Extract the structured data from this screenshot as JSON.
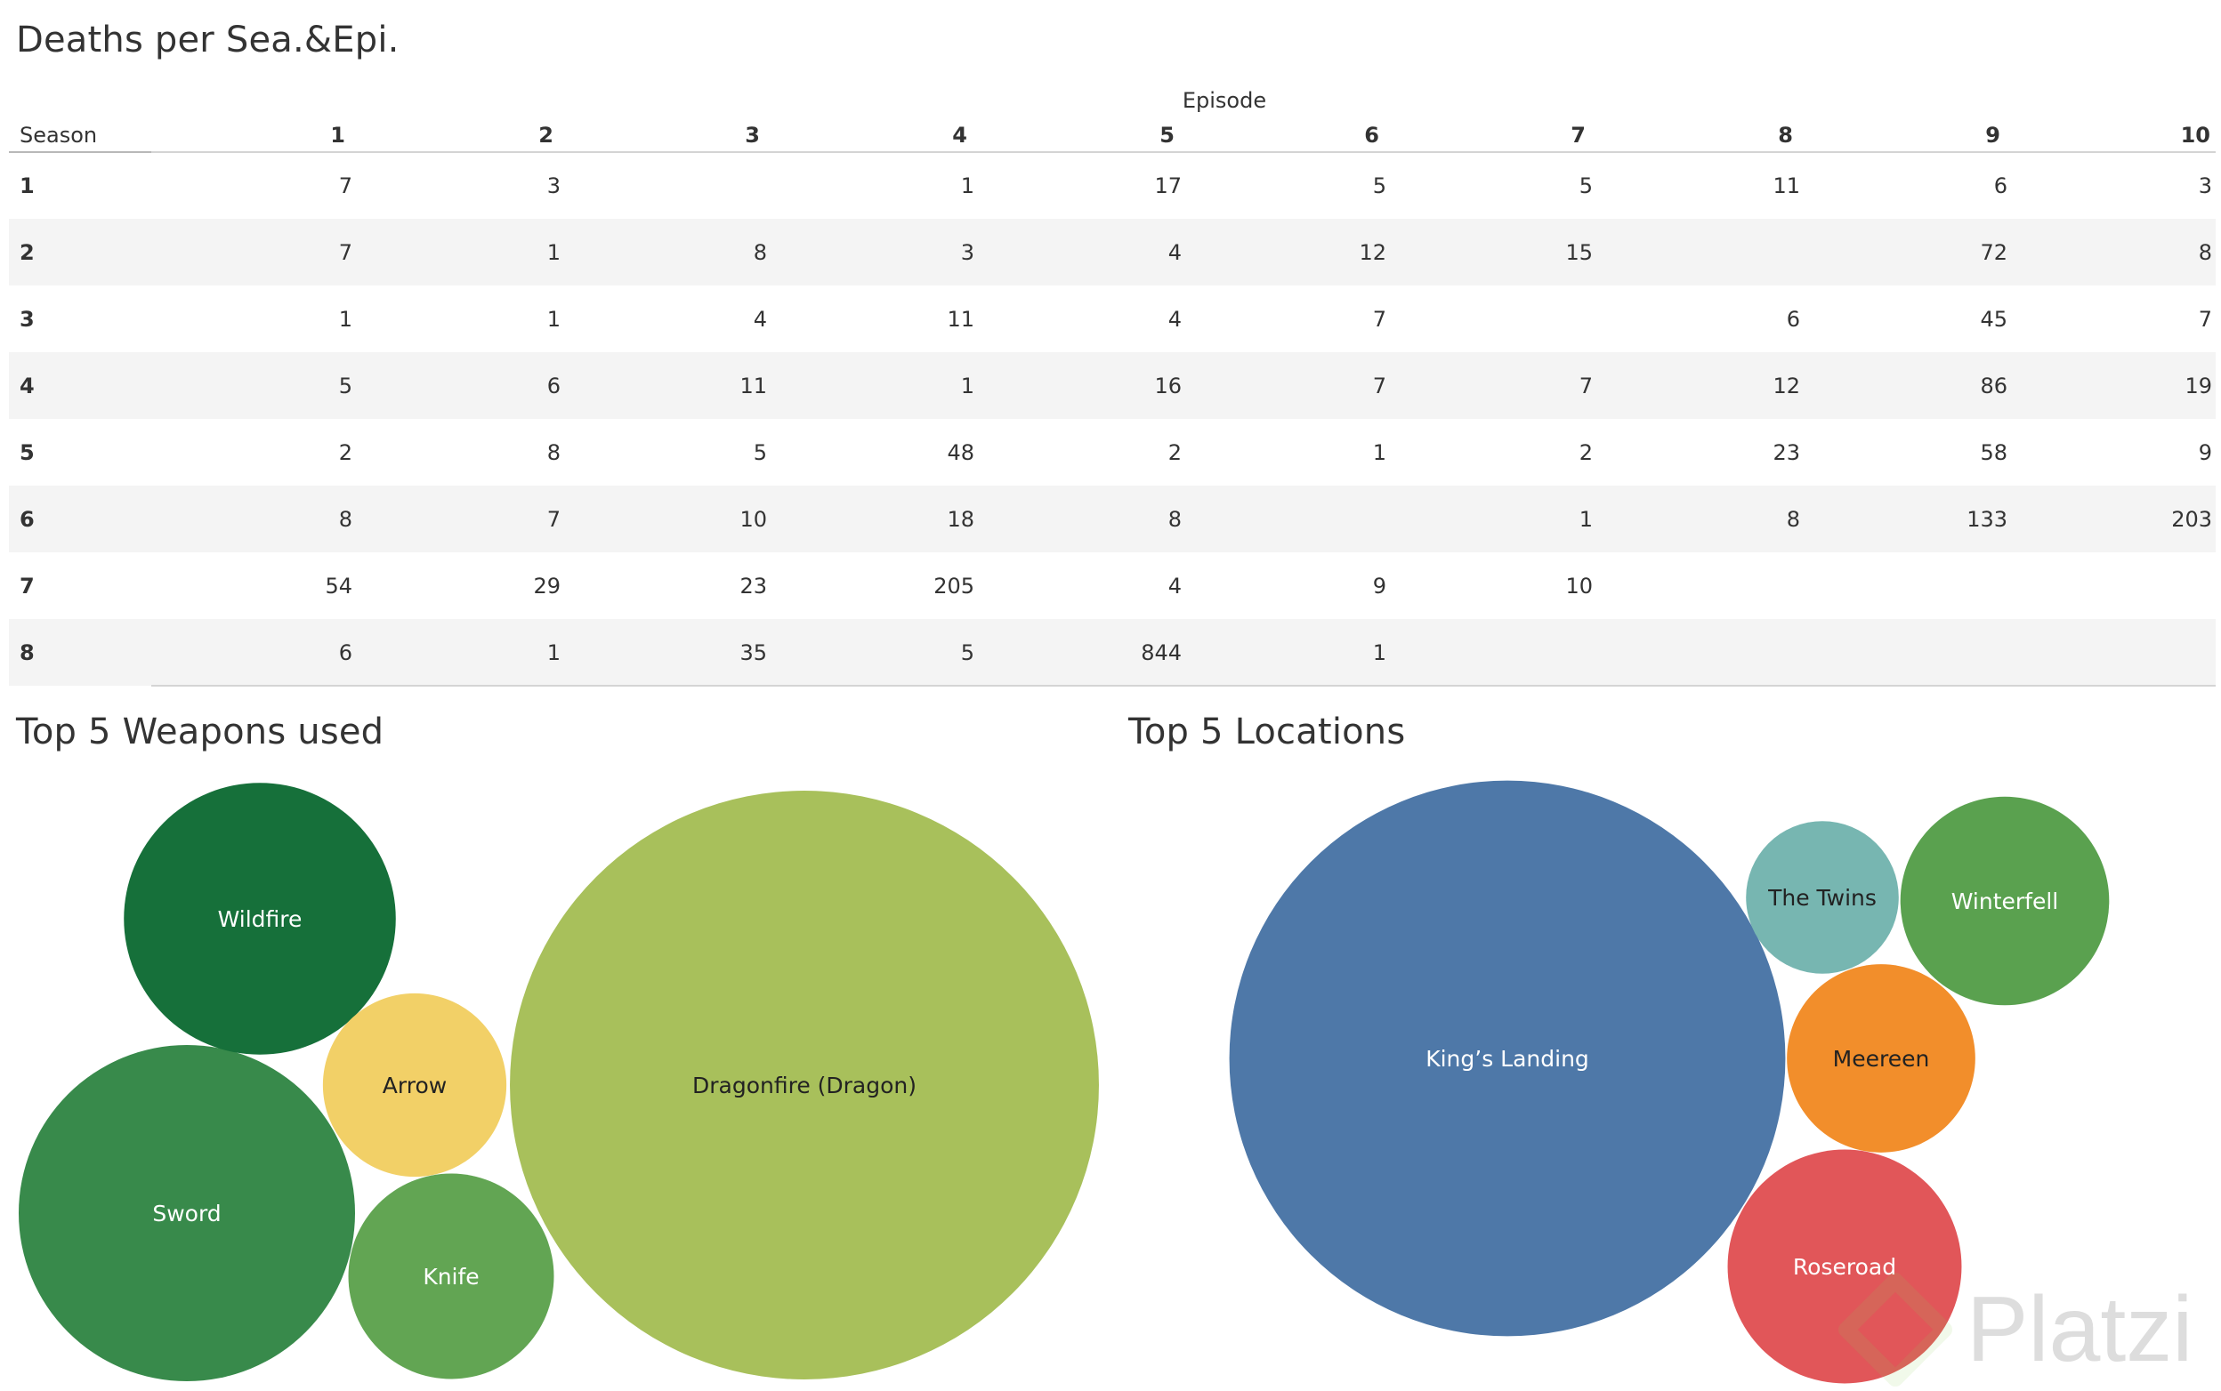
{
  "table": {
    "title": "Deaths per Sea.&Epi.",
    "row_header": "Season",
    "column_header": "Episode"
  },
  "weapons": {
    "title": "Top 5 Weapons used"
  },
  "locations": {
    "title": "Top 5 Locations"
  },
  "watermark": {
    "text": "Platzi"
  },
  "chart_data": [
    {
      "type": "table",
      "title": "Deaths per Sea.&Epi.",
      "row_label": "Season",
      "column_label": "Episode",
      "columns": [
        "1",
        "2",
        "3",
        "4",
        "5",
        "6",
        "7",
        "8",
        "9",
        "10"
      ],
      "rows": [
        {
          "season": "1",
          "values": [
            7,
            3,
            null,
            1,
            17,
            5,
            5,
            11,
            6,
            3
          ]
        },
        {
          "season": "2",
          "values": [
            7,
            1,
            8,
            3,
            4,
            12,
            15,
            null,
            72,
            8
          ]
        },
        {
          "season": "3",
          "values": [
            1,
            1,
            4,
            11,
            4,
            7,
            null,
            6,
            45,
            7
          ]
        },
        {
          "season": "4",
          "values": [
            5,
            6,
            11,
            1,
            16,
            7,
            7,
            12,
            86,
            19
          ]
        },
        {
          "season": "5",
          "values": [
            2,
            8,
            5,
            48,
            2,
            1,
            2,
            23,
            58,
            9
          ]
        },
        {
          "season": "6",
          "values": [
            8,
            7,
            10,
            18,
            8,
            null,
            1,
            8,
            133,
            203
          ]
        },
        {
          "season": "7",
          "values": [
            54,
            29,
            23,
            205,
            4,
            9,
            10,
            null,
            null,
            null
          ]
        },
        {
          "season": "8",
          "values": [
            6,
            1,
            35,
            5,
            844,
            1,
            null,
            null,
            null,
            null
          ]
        }
      ],
      "row_banding_color": "#f4f4f4"
    },
    {
      "type": "bubble",
      "title": "Top 5 Weapons used",
      "items": [
        {
          "label": "Dragonfire (Dragon)",
          "value": 690,
          "color": "#a8c05b",
          "text_color": "#222222"
        },
        {
          "label": "Sword",
          "value": 225,
          "color": "#388a4b",
          "text_color": "#ffffff"
        },
        {
          "label": "Wildfire",
          "value": 147,
          "color": "#16703a",
          "text_color": "#ffffff"
        },
        {
          "label": "Knife",
          "value": 84,
          "color": "#62a553",
          "text_color": "#ffffff"
        },
        {
          "label": "Arrow",
          "value": 67,
          "color": "#f2d067",
          "text_color": "#222222"
        }
      ]
    },
    {
      "type": "bubble",
      "title": "Top 5 Locations",
      "items": [
        {
          "label": "King’s Landing",
          "value": 610,
          "color": "#4e78a8",
          "text_color": "#ffffff"
        },
        {
          "label": "Roseroad",
          "value": 108,
          "color": "#e15659",
          "text_color": "#ffffff"
        },
        {
          "label": "Winterfell",
          "value": 86,
          "color": "#5aa14f",
          "text_color": "#ffffff"
        },
        {
          "label": "Meereen",
          "value": 70,
          "color": "#f28e2b",
          "text_color": "#222222"
        },
        {
          "label": "The Twins",
          "value": 46,
          "color": "#77b6b1",
          "text_color": "#222222"
        }
      ]
    }
  ]
}
